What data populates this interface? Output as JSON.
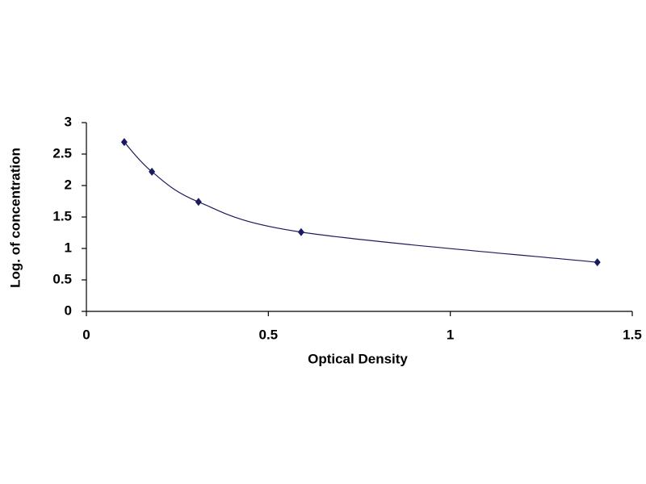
{
  "chart_data": {
    "type": "scatter",
    "x_label": "Optical Density",
    "y_label": "Log. of concentration",
    "series": [
      {
        "color": "#1a1a5e",
        "x": [
          0.104,
          0.18,
          0.308,
          0.59,
          1.404
        ],
        "values": [
          2.69,
          2.22,
          1.74,
          1.26,
          0.78
        ]
      }
    ],
    "smooth_line": true,
    "xlim": [
      0,
      1.5
    ],
    "xticks": [
      0,
      0.5,
      1,
      1.5
    ],
    "ylim": [
      0,
      3
    ],
    "yticks": [
      0,
      0.5,
      1,
      1.5,
      2,
      2.5,
      3
    ],
    "grid": false
  }
}
